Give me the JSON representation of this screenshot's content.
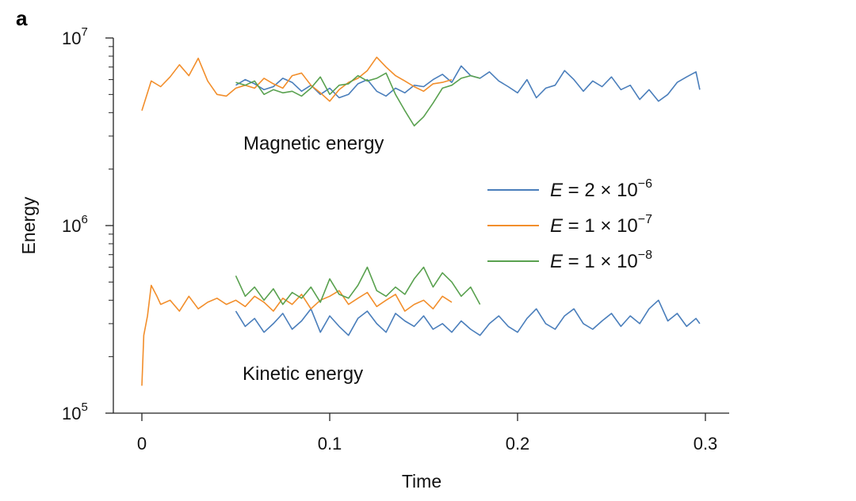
{
  "chart_data": {
    "type": "line",
    "panel_label": "a",
    "title": "",
    "xlabel": "Time",
    "ylabel": "Energy",
    "xlim": [
      0,
      0.3
    ],
    "ylim": [
      100000,
      10000000
    ],
    "yscale": "log",
    "grid": false,
    "xticks": [
      {
        "value": 0,
        "label": "0"
      },
      {
        "value": 0.1,
        "label": "0.1"
      },
      {
        "value": 0.2,
        "label": "0.2"
      },
      {
        "value": 0.3,
        "label": "0.3"
      }
    ],
    "yticks": [
      {
        "value": 100000,
        "base": "10",
        "exp": "5"
      },
      {
        "value": 1000000,
        "base": "10",
        "exp": "6"
      },
      {
        "value": 10000000,
        "base": "10",
        "exp": "7"
      }
    ],
    "annotations": {
      "magnetic": "Magnetic energy",
      "kinetic": "Kinetic energy"
    },
    "legend_position": "right-center",
    "series": [
      {
        "name": "E = 2 × 10^−6",
        "legend": {
          "var": "E",
          "rest": " = 2 × 10",
          "exp": "−6"
        },
        "color": "#4a7ebb",
        "magnetic": {
          "x": [
            0.05,
            0.055,
            0.06,
            0.065,
            0.07,
            0.075,
            0.08,
            0.085,
            0.09,
            0.095,
            0.1,
            0.105,
            0.11,
            0.115,
            0.12,
            0.125,
            0.13,
            0.135,
            0.14,
            0.145,
            0.15,
            0.155,
            0.16,
            0.165,
            0.17,
            0.175,
            0.18,
            0.185,
            0.19,
            0.195,
            0.2,
            0.205,
            0.21,
            0.215,
            0.22,
            0.225,
            0.23,
            0.235,
            0.24,
            0.245,
            0.25,
            0.255,
            0.26,
            0.265,
            0.27,
            0.275,
            0.28,
            0.285,
            0.29,
            0.295,
            0.297
          ],
          "y": [
            5600000,
            6000000,
            5700000,
            5300000,
            5500000,
            6100000,
            5800000,
            5200000,
            5600000,
            5000000,
            5400000,
            4800000,
            5000000,
            5700000,
            6000000,
            5200000,
            4900000,
            5400000,
            5100000,
            5600000,
            5500000,
            6000000,
            6400000,
            5800000,
            7100000,
            6300000,
            6100000,
            6600000,
            5900000,
            5500000,
            5100000,
            6000000,
            4800000,
            5400000,
            5600000,
            6700000,
            6000000,
            5200000,
            5900000,
            5500000,
            6200000,
            5300000,
            5600000,
            4700000,
            5300000,
            4600000,
            5000000,
            5800000,
            6200000,
            6600000,
            5300000
          ]
        },
        "kinetic": {
          "x": [
            0.05,
            0.055,
            0.06,
            0.065,
            0.07,
            0.075,
            0.08,
            0.085,
            0.09,
            0.095,
            0.1,
            0.105,
            0.11,
            0.115,
            0.12,
            0.125,
            0.13,
            0.135,
            0.14,
            0.145,
            0.15,
            0.155,
            0.16,
            0.165,
            0.17,
            0.175,
            0.18,
            0.185,
            0.19,
            0.195,
            0.2,
            0.205,
            0.21,
            0.215,
            0.22,
            0.225,
            0.23,
            0.235,
            0.24,
            0.245,
            0.25,
            0.255,
            0.26,
            0.265,
            0.27,
            0.275,
            0.28,
            0.285,
            0.29,
            0.295,
            0.297
          ],
          "y": [
            350000,
            290000,
            320000,
            270000,
            300000,
            340000,
            280000,
            310000,
            360000,
            270000,
            330000,
            290000,
            260000,
            320000,
            350000,
            300000,
            270000,
            340000,
            310000,
            290000,
            330000,
            280000,
            300000,
            270000,
            310000,
            280000,
            260000,
            300000,
            330000,
            290000,
            270000,
            320000,
            360000,
            300000,
            280000,
            330000,
            360000,
            300000,
            280000,
            310000,
            340000,
            290000,
            330000,
            300000,
            360000,
            400000,
            310000,
            340000,
            290000,
            320000,
            300000
          ]
        }
      },
      {
        "name": "E = 1 × 10^−7",
        "legend": {
          "var": "E",
          "rest": " = 1 × 10",
          "exp": "−7"
        },
        "color": "#f28e2b",
        "magnetic": {
          "x": [
            0,
            0.005,
            0.01,
            0.015,
            0.02,
            0.025,
            0.03,
            0.035,
            0.04,
            0.045,
            0.05,
            0.055,
            0.06,
            0.065,
            0.07,
            0.075,
            0.08,
            0.085,
            0.09,
            0.095,
            0.1,
            0.105,
            0.11,
            0.115,
            0.12,
            0.125,
            0.13,
            0.135,
            0.14,
            0.145,
            0.15,
            0.155,
            0.16,
            0.165
          ],
          "y": [
            4100000,
            5900000,
            5500000,
            6200000,
            7200000,
            6300000,
            7800000,
            5900000,
            5000000,
            4900000,
            5400000,
            5600000,
            5400000,
            6100000,
            5700000,
            5400000,
            6300000,
            6500000,
            5600000,
            5100000,
            4600000,
            5300000,
            5800000,
            6100000,
            6700000,
            7900000,
            7000000,
            6300000,
            5900000,
            5500000,
            5200000,
            5700000,
            5800000,
            6000000
          ]
        },
        "kinetic": {
          "x": [
            0,
            0.001,
            0.003,
            0.005,
            0.008,
            0.01,
            0.015,
            0.02,
            0.025,
            0.03,
            0.035,
            0.04,
            0.045,
            0.05,
            0.055,
            0.06,
            0.065,
            0.07,
            0.075,
            0.08,
            0.085,
            0.09,
            0.095,
            0.1,
            0.105,
            0.11,
            0.115,
            0.12,
            0.125,
            0.13,
            0.135,
            0.14,
            0.145,
            0.15,
            0.155,
            0.16,
            0.165
          ],
          "y": [
            140000,
            260000,
            330000,
            480000,
            420000,
            380000,
            400000,
            350000,
            420000,
            360000,
            390000,
            410000,
            380000,
            400000,
            370000,
            420000,
            390000,
            350000,
            410000,
            380000,
            430000,
            360000,
            400000,
            420000,
            450000,
            380000,
            410000,
            440000,
            370000,
            400000,
            430000,
            350000,
            380000,
            400000,
            360000,
            420000,
            390000
          ]
        }
      },
      {
        "name": "E = 1 × 10^−8",
        "legend": {
          "var": "E",
          "rest": " = 1 × 10",
          "exp": "−8"
        },
        "color": "#59a14f",
        "magnetic": {
          "x": [
            0.05,
            0.055,
            0.06,
            0.065,
            0.07,
            0.075,
            0.08,
            0.085,
            0.09,
            0.095,
            0.1,
            0.105,
            0.11,
            0.115,
            0.12,
            0.125,
            0.13,
            0.135,
            0.14,
            0.145,
            0.15,
            0.155,
            0.16,
            0.165,
            0.17,
            0.175,
            0.18
          ],
          "y": [
            5800000,
            5600000,
            5900000,
            5000000,
            5300000,
            5100000,
            5200000,
            4900000,
            5400000,
            6200000,
            5000000,
            5600000,
            5700000,
            6300000,
            5900000,
            6100000,
            6500000,
            5000000,
            4100000,
            3400000,
            3800000,
            4500000,
            5400000,
            5600000,
            6100000,
            6300000,
            6100000
          ]
        },
        "kinetic": {
          "x": [
            0.05,
            0.055,
            0.06,
            0.065,
            0.07,
            0.075,
            0.08,
            0.085,
            0.09,
            0.095,
            0.1,
            0.105,
            0.11,
            0.115,
            0.12,
            0.125,
            0.13,
            0.135,
            0.14,
            0.145,
            0.15,
            0.155,
            0.16,
            0.165,
            0.17,
            0.175,
            0.18
          ],
          "y": [
            540000,
            420000,
            470000,
            400000,
            460000,
            380000,
            440000,
            410000,
            470000,
            390000,
            520000,
            430000,
            410000,
            480000,
            600000,
            450000,
            420000,
            470000,
            430000,
            520000,
            600000,
            470000,
            560000,
            500000,
            420000,
            470000,
            380000
          ]
        }
      }
    ]
  }
}
